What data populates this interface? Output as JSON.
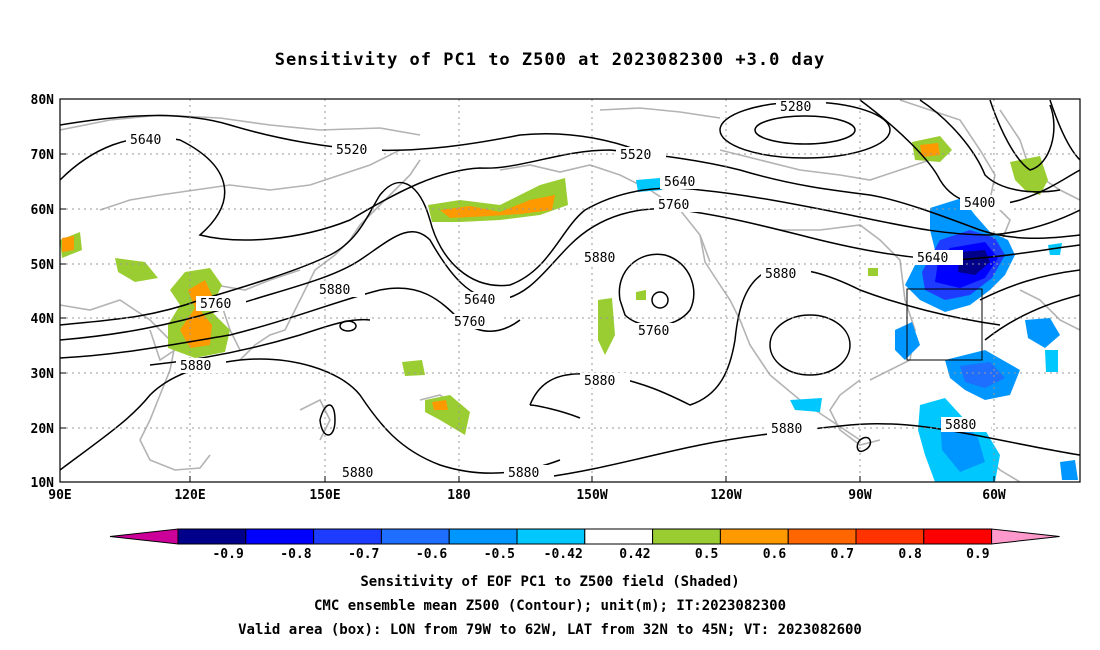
{
  "title": "Sensitivity of PC1 to Z500 at 2023082300 +3.0 day",
  "map": {
    "lat_ticks": [
      "80N",
      "70N",
      "60N",
      "50N",
      "40N",
      "30N",
      "20N",
      "10N"
    ],
    "lon_ticks": [
      "90E",
      "120E",
      "150E",
      "180",
      "150W",
      "120W",
      "90W",
      "60W"
    ],
    "contour_labels": [
      {
        "text": "5640"
      },
      {
        "text": "5520"
      },
      {
        "text": "5520"
      },
      {
        "text": "5280"
      },
      {
        "text": "5640"
      },
      {
        "text": "5760"
      },
      {
        "text": "5400"
      },
      {
        "text": "5640"
      },
      {
        "text": "5880"
      },
      {
        "text": "5640"
      },
      {
        "text": "5760"
      },
      {
        "text": "5880"
      },
      {
        "text": "5760"
      },
      {
        "text": "5880"
      },
      {
        "text": "5760"
      },
      {
        "text": "5880"
      },
      {
        "text": "5880"
      },
      {
        "text": "5880"
      },
      {
        "text": "5880"
      },
      {
        "text": "5880"
      }
    ]
  },
  "colorbar": {
    "labels": [
      "-0.9",
      "-0.8",
      "-0.7",
      "-0.6",
      "-0.5",
      "-0.42",
      "0.42",
      "0.5",
      "0.6",
      "0.7",
      "0.8",
      "0.9"
    ],
    "colors": [
      "#00008B",
      "#0000FF",
      "#1E3CFF",
      "#1E6EFF",
      "#0096FF",
      "#00C8FF",
      "#FFFFFF",
      "#9ACD32",
      "#FF9900",
      "#FF6600",
      "#FF3300",
      "#FF0000"
    ],
    "end_low": "#CC0099",
    "end_high": "#FF99CC"
  },
  "captions": {
    "line1": "Sensitivity of EOF PC1 to Z500 field (Shaded)",
    "line2": "CMC ensemble mean Z500 (Contour); unit(m); IT:2023082300",
    "line3": "Valid area (box): LON from 79W to 62W, LAT from 32N to 45N; VT: 2023082600"
  }
}
